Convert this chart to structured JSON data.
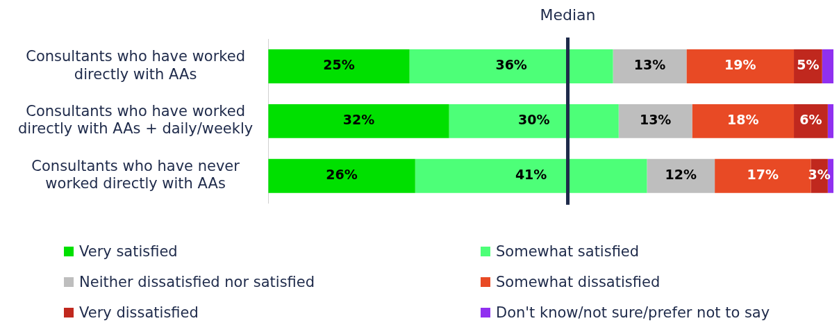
{
  "chart_data": {
    "type": "bar",
    "orientation": "horizontal",
    "stacked": true,
    "categories": [
      "Consultants who have worked directly with AAs",
      "Consultants who have worked directly with AAs + daily/weekly",
      "Consultants who have never worked directly with AAs"
    ],
    "series": [
      {
        "name": "Very satisfied",
        "color": "#00e000",
        "values": [
          25,
          32,
          26
        ],
        "value_labels": [
          "25%",
          "32%",
          "26%"
        ]
      },
      {
        "name": "Somewhat satisfied",
        "color": "#4dff78",
        "values": [
          36,
          30,
          41
        ],
        "value_labels": [
          "36%",
          "30%",
          "41%"
        ]
      },
      {
        "name": "Neither dissatisfied nor satisfied",
        "color": "#bebebe",
        "values": [
          13,
          13,
          12
        ],
        "value_labels": [
          "13%",
          "13%",
          "12%"
        ]
      },
      {
        "name": "Somewhat dissatisfied",
        "color": "#e84a25",
        "values": [
          19,
          18,
          17
        ],
        "value_labels": [
          "19%",
          "18%",
          "17%"
        ]
      },
      {
        "name": "Very dissatisfied",
        "color": "#c0281e",
        "values": [
          5,
          6,
          3
        ],
        "value_labels": [
          "5%",
          "6%",
          "3%"
        ]
      },
      {
        "name": "Don't know/not sure/prefer not to say",
        "color": "#9030f0",
        "values": [
          2,
          1,
          1
        ],
        "value_labels": [
          null,
          null,
          null
        ]
      }
    ],
    "xlim": [
      0,
      100
    ],
    "tick_labels": "y",
    "legend": "bottom",
    "ref_lines": [
      {
        "axis": "x",
        "value": 53,
        "label": "Median",
        "color": "#1e2a4a"
      }
    ]
  }
}
